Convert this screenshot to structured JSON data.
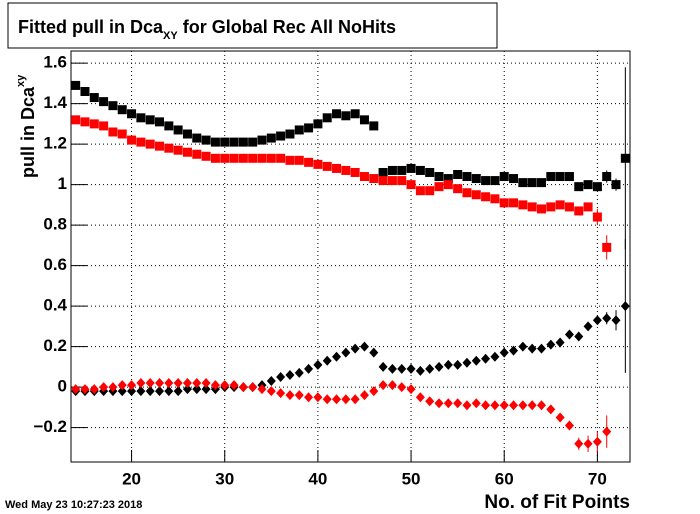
{
  "chart_data": {
    "type": "scatter",
    "title": {
      "text": "Fitted pull in Dca",
      "subscript": "XY",
      "rest": " for Global Rec All NoHits"
    },
    "ylabel": {
      "text": "pull in Dca",
      "subscript": "xy"
    },
    "xlabel": "No. of Fit Points",
    "date": "Wed May 23 10:27:23 2018",
    "xlim": [
      13.5,
      73.5
    ],
    "ylim": [
      -0.37,
      1.66
    ],
    "xticks": [
      20,
      30,
      40,
      50,
      60,
      70
    ],
    "yticks": [
      {
        "value": -0.2,
        "label": "−0.2"
      },
      0,
      0.2,
      0.4,
      0.6,
      0.8,
      1,
      1.2,
      1.4,
      1.6
    ],
    "grid": true,
    "x": [
      14,
      15,
      16,
      17,
      18,
      19,
      20,
      21,
      22,
      23,
      24,
      25,
      26,
      27,
      28,
      29,
      30,
      31,
      32,
      33,
      34,
      35,
      36,
      37,
      38,
      39,
      40,
      41,
      42,
      43,
      44,
      45,
      46,
      47,
      48,
      49,
      50,
      51,
      52,
      53,
      54,
      55,
      56,
      57,
      58,
      59,
      60,
      61,
      62,
      63,
      64,
      65,
      66,
      67,
      68,
      69,
      70,
      71,
      72,
      73
    ],
    "series": [
      {
        "color": "#000000",
        "marker": "square",
        "values": [
          1.49,
          1.46,
          1.43,
          1.41,
          1.39,
          1.37,
          1.35,
          1.33,
          1.32,
          1.31,
          1.29,
          1.27,
          1.25,
          1.23,
          1.22,
          1.21,
          1.21,
          1.21,
          1.21,
          1.21,
          1.22,
          1.23,
          1.24,
          1.25,
          1.27,
          1.28,
          1.3,
          1.33,
          1.35,
          1.34,
          1.35,
          1.32,
          1.29,
          1.06,
          1.07,
          1.07,
          1.08,
          1.07,
          1.06,
          1.04,
          1.03,
          1.05,
          1.04,
          1.03,
          1.02,
          1.02,
          1.04,
          1.03,
          1.01,
          1.01,
          1.01,
          1.04,
          1.04,
          1.04,
          0.99,
          1.0,
          0.99,
          1.04,
          1.0,
          1.13
        ],
        "errors": [
          0.005,
          0.005,
          0.005,
          0.005,
          0.005,
          0.005,
          0.005,
          0.005,
          0.005,
          0.005,
          0.005,
          0.005,
          0.005,
          0.005,
          0.005,
          0.005,
          0.005,
          0.005,
          0.005,
          0.005,
          0.005,
          0.005,
          0.005,
          0.005,
          0.005,
          0.005,
          0.005,
          0.005,
          0.005,
          0.005,
          0.005,
          0.005,
          0.005,
          0.005,
          0.005,
          0.005,
          0.005,
          0.005,
          0.005,
          0.005,
          0.005,
          0.005,
          0.005,
          0.005,
          0.005,
          0.005,
          0.005,
          0.005,
          0.005,
          0.005,
          0.005,
          0.005,
          0.005,
          0.01,
          0.01,
          0.01,
          0.02,
          0.03,
          0.03,
          0.45
        ]
      },
      {
        "color": "#ff0000",
        "marker": "square",
        "values": [
          1.32,
          1.31,
          1.3,
          1.29,
          1.26,
          1.25,
          1.22,
          1.21,
          1.2,
          1.19,
          1.18,
          1.17,
          1.16,
          1.15,
          1.14,
          1.13,
          1.13,
          1.13,
          1.13,
          1.13,
          1.13,
          1.13,
          1.13,
          1.12,
          1.12,
          1.11,
          1.1,
          1.09,
          1.08,
          1.07,
          1.06,
          1.04,
          1.03,
          1.02,
          1.02,
          1.02,
          1.0,
          0.97,
          0.97,
          0.99,
          1.0,
          0.98,
          0.96,
          0.95,
          0.94,
          0.93,
          0.91,
          0.91,
          0.9,
          0.89,
          0.88,
          0.89,
          0.9,
          0.89,
          0.87,
          0.89,
          0.84,
          0.69,
          null,
          null
        ],
        "errors": [
          0.005,
          0.005,
          0.005,
          0.005,
          0.005,
          0.005,
          0.005,
          0.005,
          0.005,
          0.005,
          0.005,
          0.005,
          0.005,
          0.005,
          0.005,
          0.005,
          0.005,
          0.005,
          0.005,
          0.005,
          0.005,
          0.005,
          0.005,
          0.005,
          0.005,
          0.005,
          0.005,
          0.005,
          0.005,
          0.005,
          0.005,
          0.005,
          0.005,
          0.005,
          0.005,
          0.005,
          0.005,
          0.005,
          0.005,
          0.005,
          0.005,
          0.005,
          0.005,
          0.005,
          0.005,
          0.005,
          0.005,
          0.005,
          0.005,
          0.005,
          0.005,
          0.005,
          0.005,
          0.01,
          0.01,
          0.02,
          0.04,
          0.06,
          null,
          null
        ]
      },
      {
        "color": "#000000",
        "marker": "diamond",
        "values": [
          -0.02,
          -0.02,
          -0.02,
          -0.02,
          -0.02,
          -0.02,
          -0.02,
          -0.02,
          -0.02,
          -0.02,
          -0.02,
          -0.02,
          -0.01,
          -0.01,
          -0.01,
          -0.01,
          0.0,
          0.0,
          0.0,
          0.0,
          0.01,
          0.03,
          0.05,
          0.06,
          0.07,
          0.09,
          0.11,
          0.13,
          0.15,
          0.17,
          0.19,
          0.2,
          0.17,
          0.1,
          0.09,
          0.09,
          0.09,
          0.08,
          0.09,
          0.1,
          0.11,
          0.11,
          0.12,
          0.13,
          0.14,
          0.15,
          0.17,
          0.18,
          0.2,
          0.19,
          0.19,
          0.21,
          0.22,
          0.26,
          0.25,
          0.3,
          0.33,
          0.34,
          0.33,
          0.4
        ],
        "errors": [
          0.005,
          0.005,
          0.005,
          0.005,
          0.005,
          0.005,
          0.005,
          0.005,
          0.005,
          0.005,
          0.005,
          0.005,
          0.005,
          0.005,
          0.005,
          0.005,
          0.005,
          0.005,
          0.005,
          0.005,
          0.005,
          0.005,
          0.005,
          0.005,
          0.005,
          0.005,
          0.005,
          0.005,
          0.005,
          0.005,
          0.005,
          0.005,
          0.005,
          0.005,
          0.005,
          0.005,
          0.005,
          0.005,
          0.005,
          0.005,
          0.005,
          0.005,
          0.005,
          0.005,
          0.005,
          0.005,
          0.005,
          0.005,
          0.005,
          0.005,
          0.005,
          0.005,
          0.005,
          0.01,
          0.01,
          0.01,
          0.02,
          0.03,
          0.05,
          0.33
        ]
      },
      {
        "color": "#ff0000",
        "marker": "diamond",
        "values": [
          -0.01,
          -0.01,
          -0.01,
          0.0,
          0.0,
          0.01,
          0.01,
          0.02,
          0.02,
          0.02,
          0.02,
          0.02,
          0.02,
          0.02,
          0.02,
          0.01,
          0.01,
          0.01,
          0.0,
          0.0,
          -0.01,
          -0.02,
          -0.03,
          -0.04,
          -0.04,
          -0.05,
          -0.05,
          -0.06,
          -0.06,
          -0.06,
          -0.06,
          -0.04,
          -0.02,
          0.01,
          0.01,
          0.0,
          -0.01,
          -0.05,
          -0.07,
          -0.08,
          -0.08,
          -0.08,
          -0.09,
          -0.08,
          -0.09,
          -0.09,
          -0.09,
          -0.09,
          -0.09,
          -0.09,
          -0.09,
          -0.11,
          -0.15,
          -0.19,
          -0.28,
          -0.28,
          -0.27,
          -0.22,
          null,
          null
        ],
        "errors": [
          0.005,
          0.005,
          0.005,
          0.005,
          0.005,
          0.005,
          0.005,
          0.005,
          0.005,
          0.005,
          0.005,
          0.005,
          0.005,
          0.005,
          0.005,
          0.005,
          0.005,
          0.005,
          0.005,
          0.005,
          0.005,
          0.005,
          0.005,
          0.005,
          0.005,
          0.005,
          0.005,
          0.005,
          0.005,
          0.005,
          0.005,
          0.005,
          0.005,
          0.005,
          0.005,
          0.005,
          0.005,
          0.005,
          0.005,
          0.005,
          0.005,
          0.005,
          0.005,
          0.005,
          0.005,
          0.005,
          0.005,
          0.005,
          0.005,
          0.005,
          0.005,
          0.005,
          0.01,
          0.01,
          0.03,
          0.04,
          0.05,
          0.08,
          null,
          null
        ]
      }
    ]
  }
}
